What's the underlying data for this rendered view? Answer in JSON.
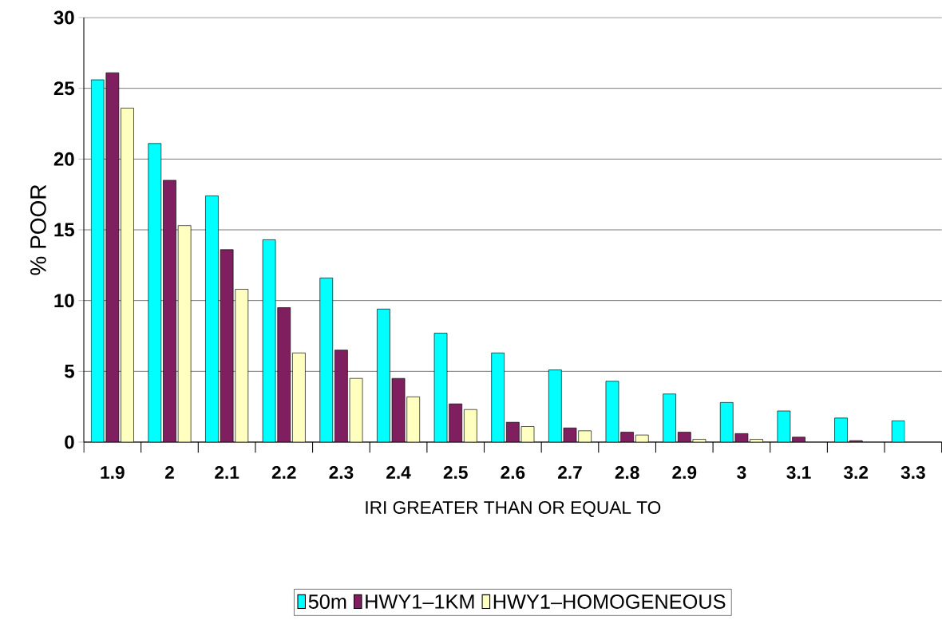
{
  "chart_data": {
    "type": "bar",
    "xlabel": "IRI GREATER THAN OR EQUAL TO",
    "ylabel": "% POOR",
    "categories": [
      "1.9",
      "2",
      "2.1",
      "2.2",
      "2.3",
      "2.4",
      "2.5",
      "2.6",
      "2.7",
      "2.8",
      "2.9",
      "3",
      "3.1",
      "3.2",
      "3.3"
    ],
    "series": [
      {
        "name": "50m",
        "color": "#00ffff",
        "values": [
          25.6,
          21.1,
          17.4,
          14.3,
          11.6,
          9.4,
          7.7,
          6.3,
          5.1,
          4.3,
          3.4,
          2.8,
          2.2,
          1.7,
          1.5
        ]
      },
      {
        "name": "HWY1–1KM",
        "color": "#7f1f5f",
        "values": [
          26.1,
          18.5,
          13.6,
          9.5,
          6.5,
          4.5,
          2.7,
          1.4,
          1.0,
          0.7,
          0.7,
          0.6,
          0.35,
          0.1,
          null
        ]
      },
      {
        "name": "HWY1–HOMOGENEOUS",
        "color": "#ffffc0",
        "values": [
          23.6,
          15.3,
          10.8,
          6.3,
          4.5,
          3.2,
          2.3,
          1.1,
          0.8,
          0.5,
          0.2,
          0.2,
          null,
          null,
          null
        ]
      }
    ],
    "ylim": [
      0,
      30
    ],
    "yticks": [
      0,
      5,
      10,
      15,
      20,
      25,
      30
    ],
    "grid": "y",
    "legend": "bottom"
  }
}
